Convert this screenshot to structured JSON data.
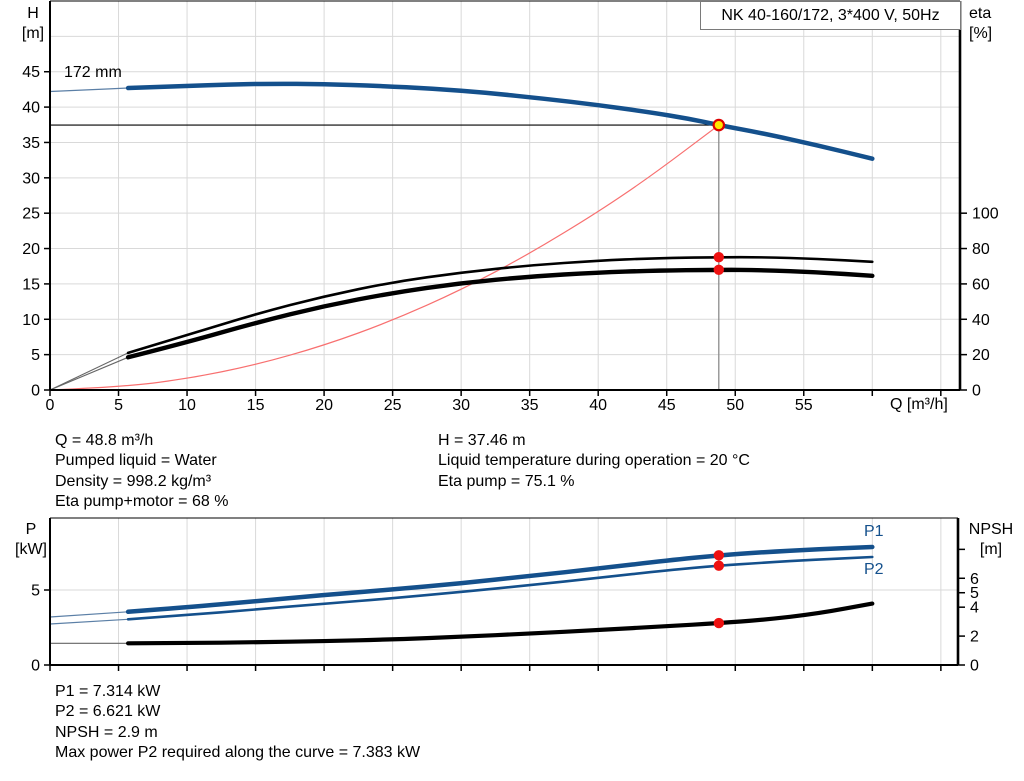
{
  "title_box": "NK 40-160/172, 3*400 V, 50Hz",
  "labels": {
    "h_axis": [
      "H",
      "[m]"
    ],
    "eta_axis": [
      "eta",
      "[%]"
    ],
    "q_axis": "Q [m³/h]",
    "p_axis": [
      "P",
      "[kW]"
    ],
    "npsh_axis": [
      "NPSH",
      "[m]"
    ],
    "p1": "P1",
    "p2": "P2",
    "size_label": "172 mm"
  },
  "info_top_left": [
    "Q = 48.8 m³/h",
    "Pumped liquid = Water",
    "Density = 998.2 kg/m³",
    "Eta pump+motor = 68 %"
  ],
  "info_top_right": [
    "H = 37.46 m",
    "Liquid temperature during operation = 20 °C",
    "Eta pump = 75.1 %"
  ],
  "info_bottom": [
    "P1 = 7.314 kW",
    "P2 = 6.621 kW",
    "NPSH = 2.9 m",
    "Max power P2 required along the curve = 7.383 kW"
  ],
  "colors": {
    "blue": "#14508c",
    "blue_thin": "#5b7fa6",
    "black": "#000000",
    "gray_thin": "#666666",
    "red": "#f87070",
    "dot_red": "#ee1111",
    "marker_yellow": "#ffe600",
    "marker_ring": "#dd0000",
    "grid": "#d9d9d9",
    "duty_vline": "#8c8c8c"
  },
  "chart_data": [
    {
      "type": "line",
      "title": "NK 40-160/172, 3*400 V, 50Hz",
      "xlabel": "Q [m³/h]",
      "x_axis": {
        "range": [
          0,
          66.4
        ],
        "ticks": [
          0,
          5,
          10,
          15,
          20,
          25,
          30,
          35,
          40,
          45,
          50,
          55,
          60,
          65
        ],
        "tick_labels": [
          "0",
          "5",
          "10",
          "15",
          "20",
          "25",
          "30",
          "35",
          "40",
          "45",
          "50",
          "55",
          "",
          ""
        ]
      },
      "left_axis": {
        "label": "H [m]",
        "range": [
          0,
          55
        ],
        "ticks": [
          0,
          5,
          10,
          15,
          20,
          25,
          30,
          35,
          40,
          45
        ],
        "tick_labels": [
          "0",
          "5",
          "10",
          "15",
          "20",
          "25",
          "30",
          "35",
          "40",
          "45"
        ],
        "gridlines": [
          5,
          10,
          15,
          20,
          25,
          30,
          35,
          40,
          45,
          50
        ]
      },
      "right_axis": {
        "label": "eta [%]",
        "range": [
          0,
          220
        ],
        "ticks": [
          0,
          20,
          40,
          60,
          80,
          100
        ],
        "tick_labels": [
          "0",
          "20",
          "40",
          "60",
          "80",
          "100"
        ]
      },
      "series": [
        {
          "name": "head-curve-thin",
          "axis": "left",
          "color": "blue_thin",
          "width": 1.2,
          "points": [
            [
              0,
              42.2
            ],
            [
              3,
              42.45
            ],
            [
              5.7,
              42.7
            ]
          ]
        },
        {
          "name": "head-curve-172mm",
          "axis": "left",
          "color": "blue",
          "width": 4.5,
          "points": [
            [
              5.7,
              42.7
            ],
            [
              10,
              43.0
            ],
            [
              13,
              43.2
            ],
            [
              16,
              43.3
            ],
            [
              20,
              43.25
            ],
            [
              24,
              43.0
            ],
            [
              28,
              42.6
            ],
            [
              32,
              42.0
            ],
            [
              36,
              41.2
            ],
            [
              40,
              40.3
            ],
            [
              44,
              39.2
            ],
            [
              46.5,
              38.4
            ],
            [
              48.8,
              37.46
            ],
            [
              52,
              36.3
            ],
            [
              56,
              34.6
            ],
            [
              60,
              32.7
            ]
          ]
        },
        {
          "name": "system-curve",
          "axis": "left",
          "color": "red",
          "width": 1.2,
          "points": [
            [
              0,
              0
            ],
            [
              5,
              0.39
            ],
            [
              10,
              1.57
            ],
            [
              15,
              3.54
            ],
            [
              20,
              6.29
            ],
            [
              25,
              9.83
            ],
            [
              30,
              14.16
            ],
            [
              35,
              19.27
            ],
            [
              40,
              25.17
            ],
            [
              44,
              30.45
            ],
            [
              48.8,
              37.46
            ]
          ]
        },
        {
          "name": "eta-pump-thin",
          "axis": "right",
          "color": "gray_thin",
          "width": 1.1,
          "points": [
            [
              0,
              0
            ],
            [
              5.7,
              21
            ]
          ]
        },
        {
          "name": "eta-pump-motor-thin",
          "axis": "right",
          "color": "gray_thin",
          "width": 1.1,
          "points": [
            [
              0,
              0
            ],
            [
              5.7,
              18.5
            ]
          ]
        },
        {
          "name": "eta-pump-curve",
          "axis": "right",
          "color": "black",
          "width": 2.6,
          "points": [
            [
              5.7,
              21
            ],
            [
              10,
              31
            ],
            [
              15,
              43
            ],
            [
              20,
              53
            ],
            [
              25,
              61
            ],
            [
              30,
              66.5
            ],
            [
              35,
              70.5
            ],
            [
              40,
              73.2
            ],
            [
              44,
              74.5
            ],
            [
              48.8,
              75.1
            ],
            [
              52,
              75.1
            ],
            [
              56,
              74.2
            ],
            [
              60,
              72.5
            ]
          ]
        },
        {
          "name": "eta-pump-motor-curve",
          "axis": "right",
          "color": "black",
          "width": 4.4,
          "points": [
            [
              5.7,
              18.5
            ],
            [
              10,
              27
            ],
            [
              15,
              38
            ],
            [
              20,
              47.5
            ],
            [
              25,
              55
            ],
            [
              30,
              60.5
            ],
            [
              35,
              64.2
            ],
            [
              40,
              66.4
            ],
            [
              44,
              67.5
            ],
            [
              48.8,
              68
            ],
            [
              52,
              67.8
            ],
            [
              56,
              66.6
            ],
            [
              60,
              64.6
            ]
          ]
        }
      ],
      "duty": {
        "q": 48.8,
        "left_value": 37.46,
        "hline": true,
        "vline": true,
        "marker": true,
        "right_dots": [
          75.1,
          68
        ]
      }
    },
    {
      "type": "line",
      "title": "Power and NPSH",
      "x_axis": {
        "range": [
          0,
          66.25
        ],
        "ticks": [
          0,
          5,
          10,
          15,
          20,
          25,
          30,
          35,
          40,
          45,
          50,
          55,
          60,
          65
        ],
        "tick_labels": []
      },
      "left_axis": {
        "label": "P [kW]",
        "range": [
          0,
          9.8
        ],
        "ticks": [
          0,
          5
        ],
        "tick_labels": [
          "0",
          "5"
        ],
        "gridlines": [
          5
        ]
      },
      "right_axis": {
        "label": "NPSH [m]",
        "range": [
          0,
          10.17
        ],
        "ticks": [
          0,
          2,
          4,
          5,
          6,
          8
        ],
        "tick_labels": [
          "0",
          "2",
          "4",
          "5",
          "6",
          ""
        ]
      },
      "series": [
        {
          "name": "p1-curve-thin",
          "axis": "left",
          "color": "blue_thin",
          "width": 1.2,
          "points": [
            [
              0,
              3.2
            ],
            [
              5.7,
              3.55
            ]
          ]
        },
        {
          "name": "p2-curve-thin",
          "axis": "left",
          "color": "blue_thin",
          "width": 1.2,
          "points": [
            [
              0,
              2.73
            ],
            [
              5.7,
              3.05
            ]
          ]
        },
        {
          "name": "npsh-curve-thin",
          "axis": "right",
          "color": "gray_thin",
          "width": 1.1,
          "points": [
            [
              0,
              1.5
            ],
            [
              5.7,
              1.5
            ]
          ]
        },
        {
          "name": "p1-curve",
          "axis": "left",
          "color": "blue",
          "width": 4.5,
          "points": [
            [
              5.7,
              3.55
            ],
            [
              10,
              3.85
            ],
            [
              15,
              4.25
            ],
            [
              20,
              4.67
            ],
            [
              25,
              5.03
            ],
            [
              30,
              5.45
            ],
            [
              35,
              5.93
            ],
            [
              40,
              6.43
            ],
            [
              45,
              6.97
            ],
            [
              48.8,
              7.314
            ],
            [
              52,
              7.52
            ],
            [
              56,
              7.72
            ],
            [
              60,
              7.87
            ]
          ]
        },
        {
          "name": "p2-curve",
          "axis": "left",
          "color": "blue",
          "width": 2.6,
          "points": [
            [
              5.7,
              3.05
            ],
            [
              10,
              3.33
            ],
            [
              15,
              3.7
            ],
            [
              20,
              4.08
            ],
            [
              25,
              4.45
            ],
            [
              30,
              4.87
            ],
            [
              35,
              5.32
            ],
            [
              40,
              5.8
            ],
            [
              45,
              6.32
            ],
            [
              48.8,
              6.621
            ],
            [
              52,
              6.82
            ],
            [
              56,
              7.03
            ],
            [
              60,
              7.2
            ]
          ]
        },
        {
          "name": "npsh-curve",
          "axis": "right",
          "color": "black",
          "width": 4.2,
          "points": [
            [
              5.7,
              1.5
            ],
            [
              10,
              1.52
            ],
            [
              15,
              1.57
            ],
            [
              20,
              1.65
            ],
            [
              25,
              1.77
            ],
            [
              30,
              1.95
            ],
            [
              35,
              2.17
            ],
            [
              40,
              2.42
            ],
            [
              45,
              2.68
            ],
            [
              48.8,
              2.9
            ],
            [
              52,
              3.12
            ],
            [
              56,
              3.55
            ],
            [
              60,
              4.25
            ]
          ]
        }
      ],
      "duty": {
        "q": 48.8,
        "left_dots": [
          7.314,
          6.621
        ],
        "right_dots": [
          2.9
        ]
      }
    }
  ]
}
